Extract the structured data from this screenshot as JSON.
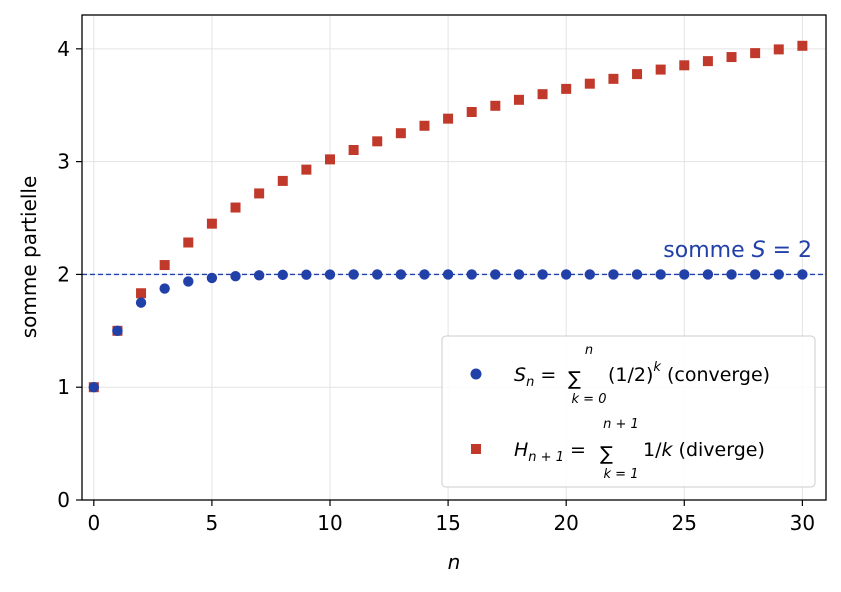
{
  "chart_data": {
    "type": "scatter",
    "xlabel": "n",
    "ylabel": "somme partielle",
    "xlim": [
      -0.5,
      31
    ],
    "ylim": [
      0,
      4.3
    ],
    "xticks": [
      0,
      5,
      10,
      15,
      20,
      25,
      30
    ],
    "yticks": [
      0,
      1,
      2,
      3,
      4
    ],
    "grid": true,
    "legend_position": "lower-right",
    "x": [
      0,
      1,
      2,
      3,
      4,
      5,
      6,
      7,
      8,
      9,
      10,
      11,
      12,
      13,
      14,
      15,
      16,
      17,
      18,
      19,
      20,
      21,
      22,
      23,
      24,
      25,
      26,
      27,
      28,
      29,
      30
    ],
    "series": [
      {
        "name": "S_n = Σ_{k=0}^{n} (1/2)^k (converge)",
        "marker": "circle",
        "color": "#2140a8",
        "values": [
          1.0,
          1.5,
          1.75,
          1.875,
          1.9375,
          1.969,
          1.984,
          1.992,
          1.996,
          1.998,
          1.999,
          2.0,
          2.0,
          2.0,
          2.0,
          2.0,
          2.0,
          2.0,
          2.0,
          2.0,
          2.0,
          2.0,
          2.0,
          2.0,
          2.0,
          2.0,
          2.0,
          2.0,
          2.0,
          2.0,
          2.0
        ]
      },
      {
        "name": "H_{n+1} = Σ_{k=1}^{n+1} 1/k (diverge)",
        "marker": "square",
        "color": "#c0392b",
        "values": [
          1.0,
          1.5,
          1.833,
          2.083,
          2.283,
          2.45,
          2.593,
          2.718,
          2.829,
          2.929,
          3.02,
          3.103,
          3.18,
          3.252,
          3.318,
          3.381,
          3.44,
          3.495,
          3.548,
          3.598,
          3.645,
          3.691,
          3.734,
          3.776,
          3.816,
          3.854,
          3.891,
          3.927,
          3.962,
          3.995,
          4.027
        ]
      }
    ],
    "reference_line": {
      "y": 2,
      "color": "#2140a8",
      "style": "dashed",
      "label_prefix": "somme ",
      "label_var": "S",
      "label_rest": " = 2"
    }
  },
  "legend": {
    "s_lhs": "S",
    "s_sub": "n",
    "s_eq": " = ",
    "s_sum": "∑",
    "s_upper": "n",
    "s_lower": "k = 0",
    "s_body": "(1/2)",
    "s_exp": "k",
    "s_tail": " (converge)",
    "h_lhs": "H",
    "h_sub": "n + 1",
    "h_eq": " = ",
    "h_sum": "∑",
    "h_upper": "n + 1",
    "h_lower": "k = 1",
    "h_body": "1/",
    "h_bodyvar": "k",
    "h_tail": " (diverge)"
  }
}
